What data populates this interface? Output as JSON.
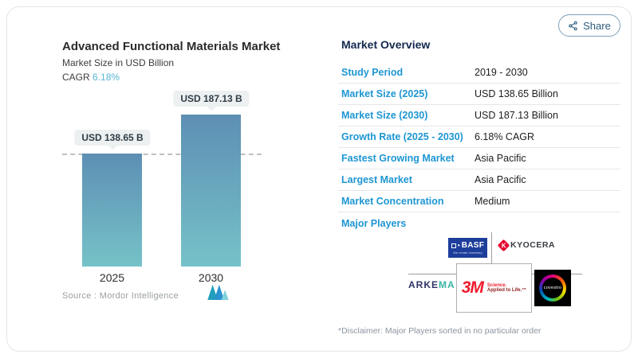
{
  "header": {
    "share_label": "Share"
  },
  "chart": {
    "title": "Advanced Functional Materials Market",
    "subtitle": "Market Size in USD Billion",
    "cagr_label": "CAGR",
    "cagr_value": "6.18%",
    "bars": [
      {
        "year": "2025",
        "label": "USD 138.65 B"
      },
      {
        "year": "2030",
        "label": "USD 187.13 B"
      }
    ],
    "source_label": "Source :",
    "source_name": "Mordor Intelligence"
  },
  "chart_data": {
    "type": "bar",
    "title": "Advanced Functional Materials Market",
    "subtitle": "Market Size in USD Billion",
    "categories": [
      "2025",
      "2030"
    ],
    "values": [
      138.65,
      187.13
    ],
    "unit": "USD Billion",
    "data_labels": [
      "USD 138.65 B",
      "USD 187.13 B"
    ],
    "cagr": "6.18%",
    "reference_line_y": 138.65,
    "ylim": [
      0,
      187.13
    ],
    "grid": false,
    "legend": false,
    "bar_gradient": [
      "#5d8fb4",
      "#76c2c8"
    ]
  },
  "overview": {
    "title": "Market Overview",
    "rows": [
      {
        "label": "Study Period",
        "value": "2019 - 2030"
      },
      {
        "label": "Market Size (2025)",
        "value": "USD 138.65 Billion"
      },
      {
        "label": "Market Size (2030)",
        "value": "USD 187.13 Billion"
      },
      {
        "label": "Growth Rate (2025 - 2030)",
        "value": "6.18% CAGR"
      },
      {
        "label": "Fastest Growing Market",
        "value": "Asia Pacific"
      },
      {
        "label": "Largest Market",
        "value": "Asia Pacific"
      },
      {
        "label": "Market Concentration",
        "value": "Medium"
      }
    ],
    "major_players_label": "Major Players",
    "disclaimer": "*Disclaimer: Major Players sorted in no particular order"
  },
  "players": {
    "list": [
      "BASF",
      "KYOCERA",
      "ARKEMA",
      "3M",
      "Covestro"
    ],
    "basf": {
      "name": "BASF",
      "tagline": "We create chemistry"
    },
    "kyocera": {
      "icon_letter": "K",
      "name": "KYOCERA"
    },
    "arkema": {
      "part1": "ARKE",
      "part2": "MA"
    },
    "mmm": {
      "name": "3M",
      "tag1": "Science.",
      "tag2": "Applied to Life.™"
    },
    "covestro": {
      "name": "covestro"
    }
  },
  "colors": {
    "accent_blue": "#1e96d2",
    "cagr_blue": "#58b7d4",
    "navy": "#13294e",
    "bar_top": "#5d8fb4",
    "bar_bottom": "#76c2c8",
    "basf_blue": "#1d3e9b",
    "kyocera_red": "#e4032e",
    "mmm_red": "#ee1b2d",
    "arkema_teal": "#3cb4a4"
  }
}
